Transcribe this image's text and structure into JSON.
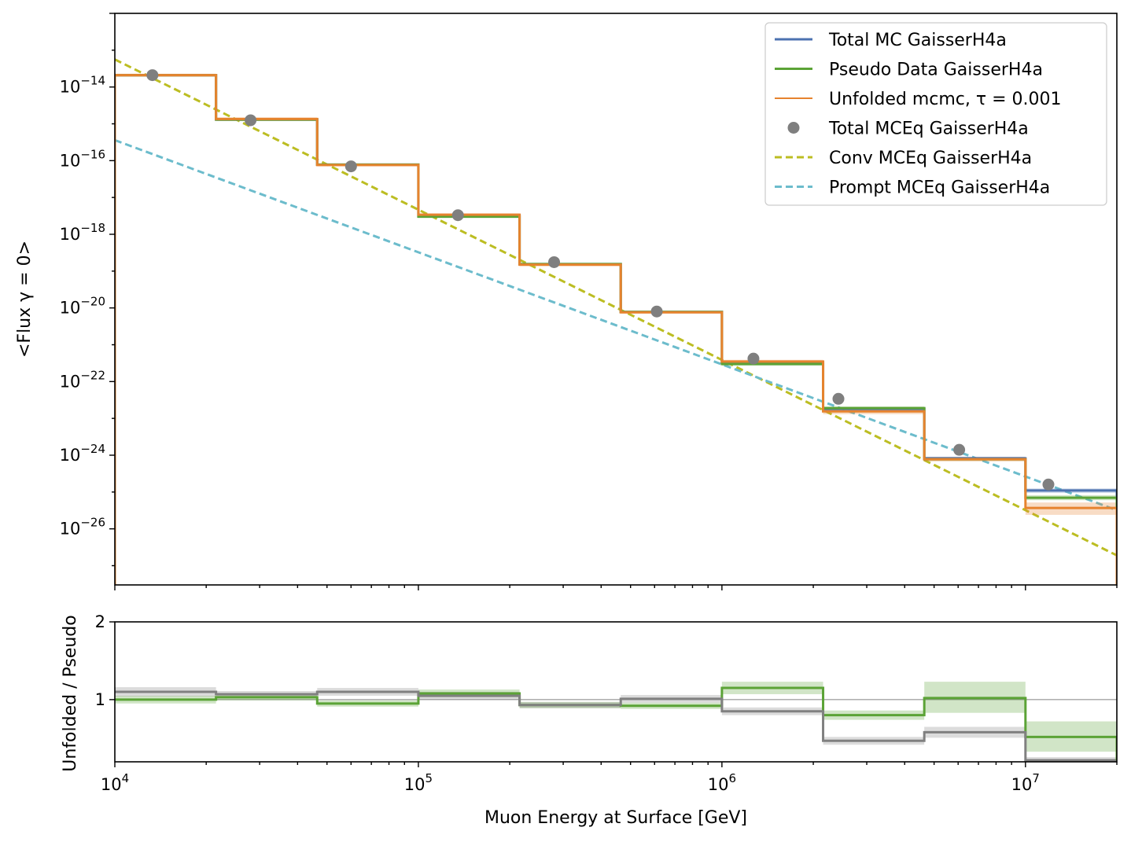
{
  "chart_data": [
    {
      "type": "line",
      "xscale": "log",
      "yscale": "log",
      "xlim": [
        10000,
        20000000
      ],
      "ylim": [
        3e-28,
        1e-12
      ],
      "ylabel": "<Flux γ = 0>",
      "yticks": [
        {
          "value": 1e-14,
          "base": "10",
          "exp": "−14"
        },
        {
          "value": 1e-16,
          "base": "10",
          "exp": "−16"
        },
        {
          "value": 1e-18,
          "base": "10",
          "exp": "−18"
        },
        {
          "value": 1e-20,
          "base": "10",
          "exp": "−20"
        },
        {
          "value": 1e-22,
          "base": "10",
          "exp": "−22"
        },
        {
          "value": 1e-24,
          "base": "10",
          "exp": "−24"
        },
        {
          "value": 1e-26,
          "base": "10",
          "exp": "−26"
        }
      ],
      "legend_position": "top-right",
      "bin_edges": [
        10000,
        21544,
        46416,
        100000,
        215443,
        464159,
        1000000,
        2154435,
        4641589,
        10000000,
        20000000
      ],
      "series": [
        {
          "name": "Total MC GaisserH4a",
          "kind": "step",
          "color": "#4c72b0",
          "values": [
            2.1e-14,
            1.3e-15,
            7.8e-17,
            3.2e-18,
            1.55e-19,
            7.8e-21,
            3.2e-22,
            1.8e-23,
            8.2e-25,
            1.1e-25
          ],
          "band": [
            [
              1.95e-14,
              2.25e-14
            ],
            [
              1.2e-15,
              1.4e-15
            ],
            [
              7.3e-17,
              8.3e-17
            ],
            [
              3e-18,
              3.4e-18
            ],
            [
              1.45e-19,
              1.65e-19
            ],
            [
              7.3e-21,
              8.3e-21
            ],
            [
              2.9e-22,
              3.5e-22
            ],
            [
              1.6e-23,
              2e-23
            ],
            [
              7.3e-25,
              9.1e-25
            ],
            [
              9.5e-26,
              1.25e-25
            ]
          ]
        },
        {
          "name": "Pseudo Data GaisserH4a",
          "kind": "step",
          "color": "#5ba336",
          "values": [
            2.1e-14,
            1.3e-15,
            7.8e-17,
            3e-18,
            1.55e-19,
            7.8e-21,
            3e-22,
            1.9e-23,
            7.8e-25,
            7e-26
          ],
          "band": [
            [
              1.95e-14,
              2.25e-14
            ],
            [
              1.2e-15,
              1.4e-15
            ],
            [
              7.3e-17,
              8.3e-17
            ],
            [
              2.8e-18,
              3.2e-18
            ],
            [
              1.45e-19,
              1.65e-19
            ],
            [
              7.3e-21,
              8.3e-21
            ],
            [
              2.7e-22,
              3.3e-22
            ],
            [
              1.7e-23,
              2.1e-23
            ],
            [
              7e-25,
              8.6e-25
            ],
            [
              6e-26,
              8.2e-26
            ]
          ]
        },
        {
          "name": "Unfolded mcmc, τ = 0.001",
          "kind": "step",
          "color": "#e6832e",
          "values": [
            2.1e-14,
            1.35e-15,
            7.6e-17,
            3.4e-18,
            1.5e-19,
            7.6e-21,
            3.5e-22,
            1.55e-23,
            7.8e-25,
            3.7e-26
          ],
          "band": [
            [
              1.9e-14,
              2.3e-14
            ],
            [
              1.2e-15,
              1.5e-15
            ],
            [
              7e-17,
              8.2e-17
            ],
            [
              3.1e-18,
              3.7e-18
            ],
            [
              1.35e-19,
              1.65e-19
            ],
            [
              7e-21,
              8.2e-21
            ],
            [
              3.1e-22,
              3.9e-22
            ],
            [
              1.3e-23,
              1.85e-23
            ],
            [
              6.8e-25,
              9e-25
            ],
            [
              2.4e-26,
              5.2e-26
            ]
          ]
        },
        {
          "name": "Total MCEq GaisserH4a",
          "kind": "points",
          "color": "#7f7f7f",
          "x": [
            13300,
            28000,
            60000,
            135000,
            280000,
            610000,
            1270000,
            2420000,
            6050000,
            11900000
          ],
          "y": [
            2.1e-14,
            1.25e-15,
            7e-17,
            3.3e-18,
            1.75e-19,
            8e-21,
            4.2e-22,
            3.4e-23,
            1.4e-24,
            1.6e-25
          ]
        },
        {
          "name": "Conv MCEq GaisserH4a",
          "kind": "dashed",
          "color": "#bcbd22",
          "x": [
            10000,
            20000000
          ],
          "y": [
            5.6e-14,
            1.9e-27
          ]
        },
        {
          "name": "Prompt MCEq GaisserH4a",
          "kind": "dashed",
          "color": "#6cbccc",
          "x": [
            10000,
            20000000
          ],
          "y": [
            3.6e-16,
            3.2e-26
          ]
        }
      ]
    },
    {
      "type": "line",
      "xscale": "log",
      "xlim": [
        10000,
        20000000
      ],
      "ylim": [
        0.2,
        2.0
      ],
      "xlabel": "Muon Energy at Surface [GeV]",
      "ylabel": "Unfolded / Pseudo",
      "yticks": [
        {
          "value": 2,
          "label": "2"
        },
        {
          "value": 1,
          "label": "1"
        }
      ],
      "xticks": [
        {
          "value": 10000,
          "base": "10",
          "exp": "4"
        },
        {
          "value": 100000,
          "base": "10",
          "exp": "5"
        },
        {
          "value": 1000000,
          "base": "10",
          "exp": "6"
        },
        {
          "value": 10000000,
          "base": "10",
          "exp": "7"
        }
      ],
      "reference_line": 1.0,
      "bin_edges": [
        10000,
        21544,
        46416,
        100000,
        215443,
        464159,
        1000000,
        2154435,
        4641589,
        10000000,
        20000000
      ],
      "series": [
        {
          "kind": "step",
          "color": "#5ba336",
          "values": [
            1.0,
            1.03,
            0.95,
            1.08,
            0.93,
            0.92,
            1.15,
            0.8,
            1.02,
            0.52
          ],
          "band": [
            [
              0.95,
              1.05
            ],
            [
              0.99,
              1.07
            ],
            [
              0.91,
              0.99
            ],
            [
              1.03,
              1.13
            ],
            [
              0.89,
              0.97
            ],
            [
              0.88,
              0.96
            ],
            [
              1.07,
              1.23
            ],
            [
              0.74,
              0.86
            ],
            [
              0.83,
              1.23
            ],
            [
              0.33,
              0.72
            ]
          ]
        },
        {
          "kind": "step",
          "color": "#808080",
          "values": [
            1.1,
            1.07,
            1.1,
            1.05,
            0.93,
            1.01,
            0.85,
            0.47,
            0.58,
            0.22
          ],
          "band": [
            [
              1.04,
              1.16
            ],
            [
              1.03,
              1.11
            ],
            [
              1.05,
              1.15
            ],
            [
              1.0,
              1.1
            ],
            [
              0.89,
              0.97
            ],
            [
              0.96,
              1.06
            ],
            [
              0.8,
              0.9
            ],
            [
              0.42,
              0.52
            ],
            [
              0.51,
              0.65
            ],
            [
              0.19,
              0.26
            ]
          ]
        }
      ]
    }
  ]
}
